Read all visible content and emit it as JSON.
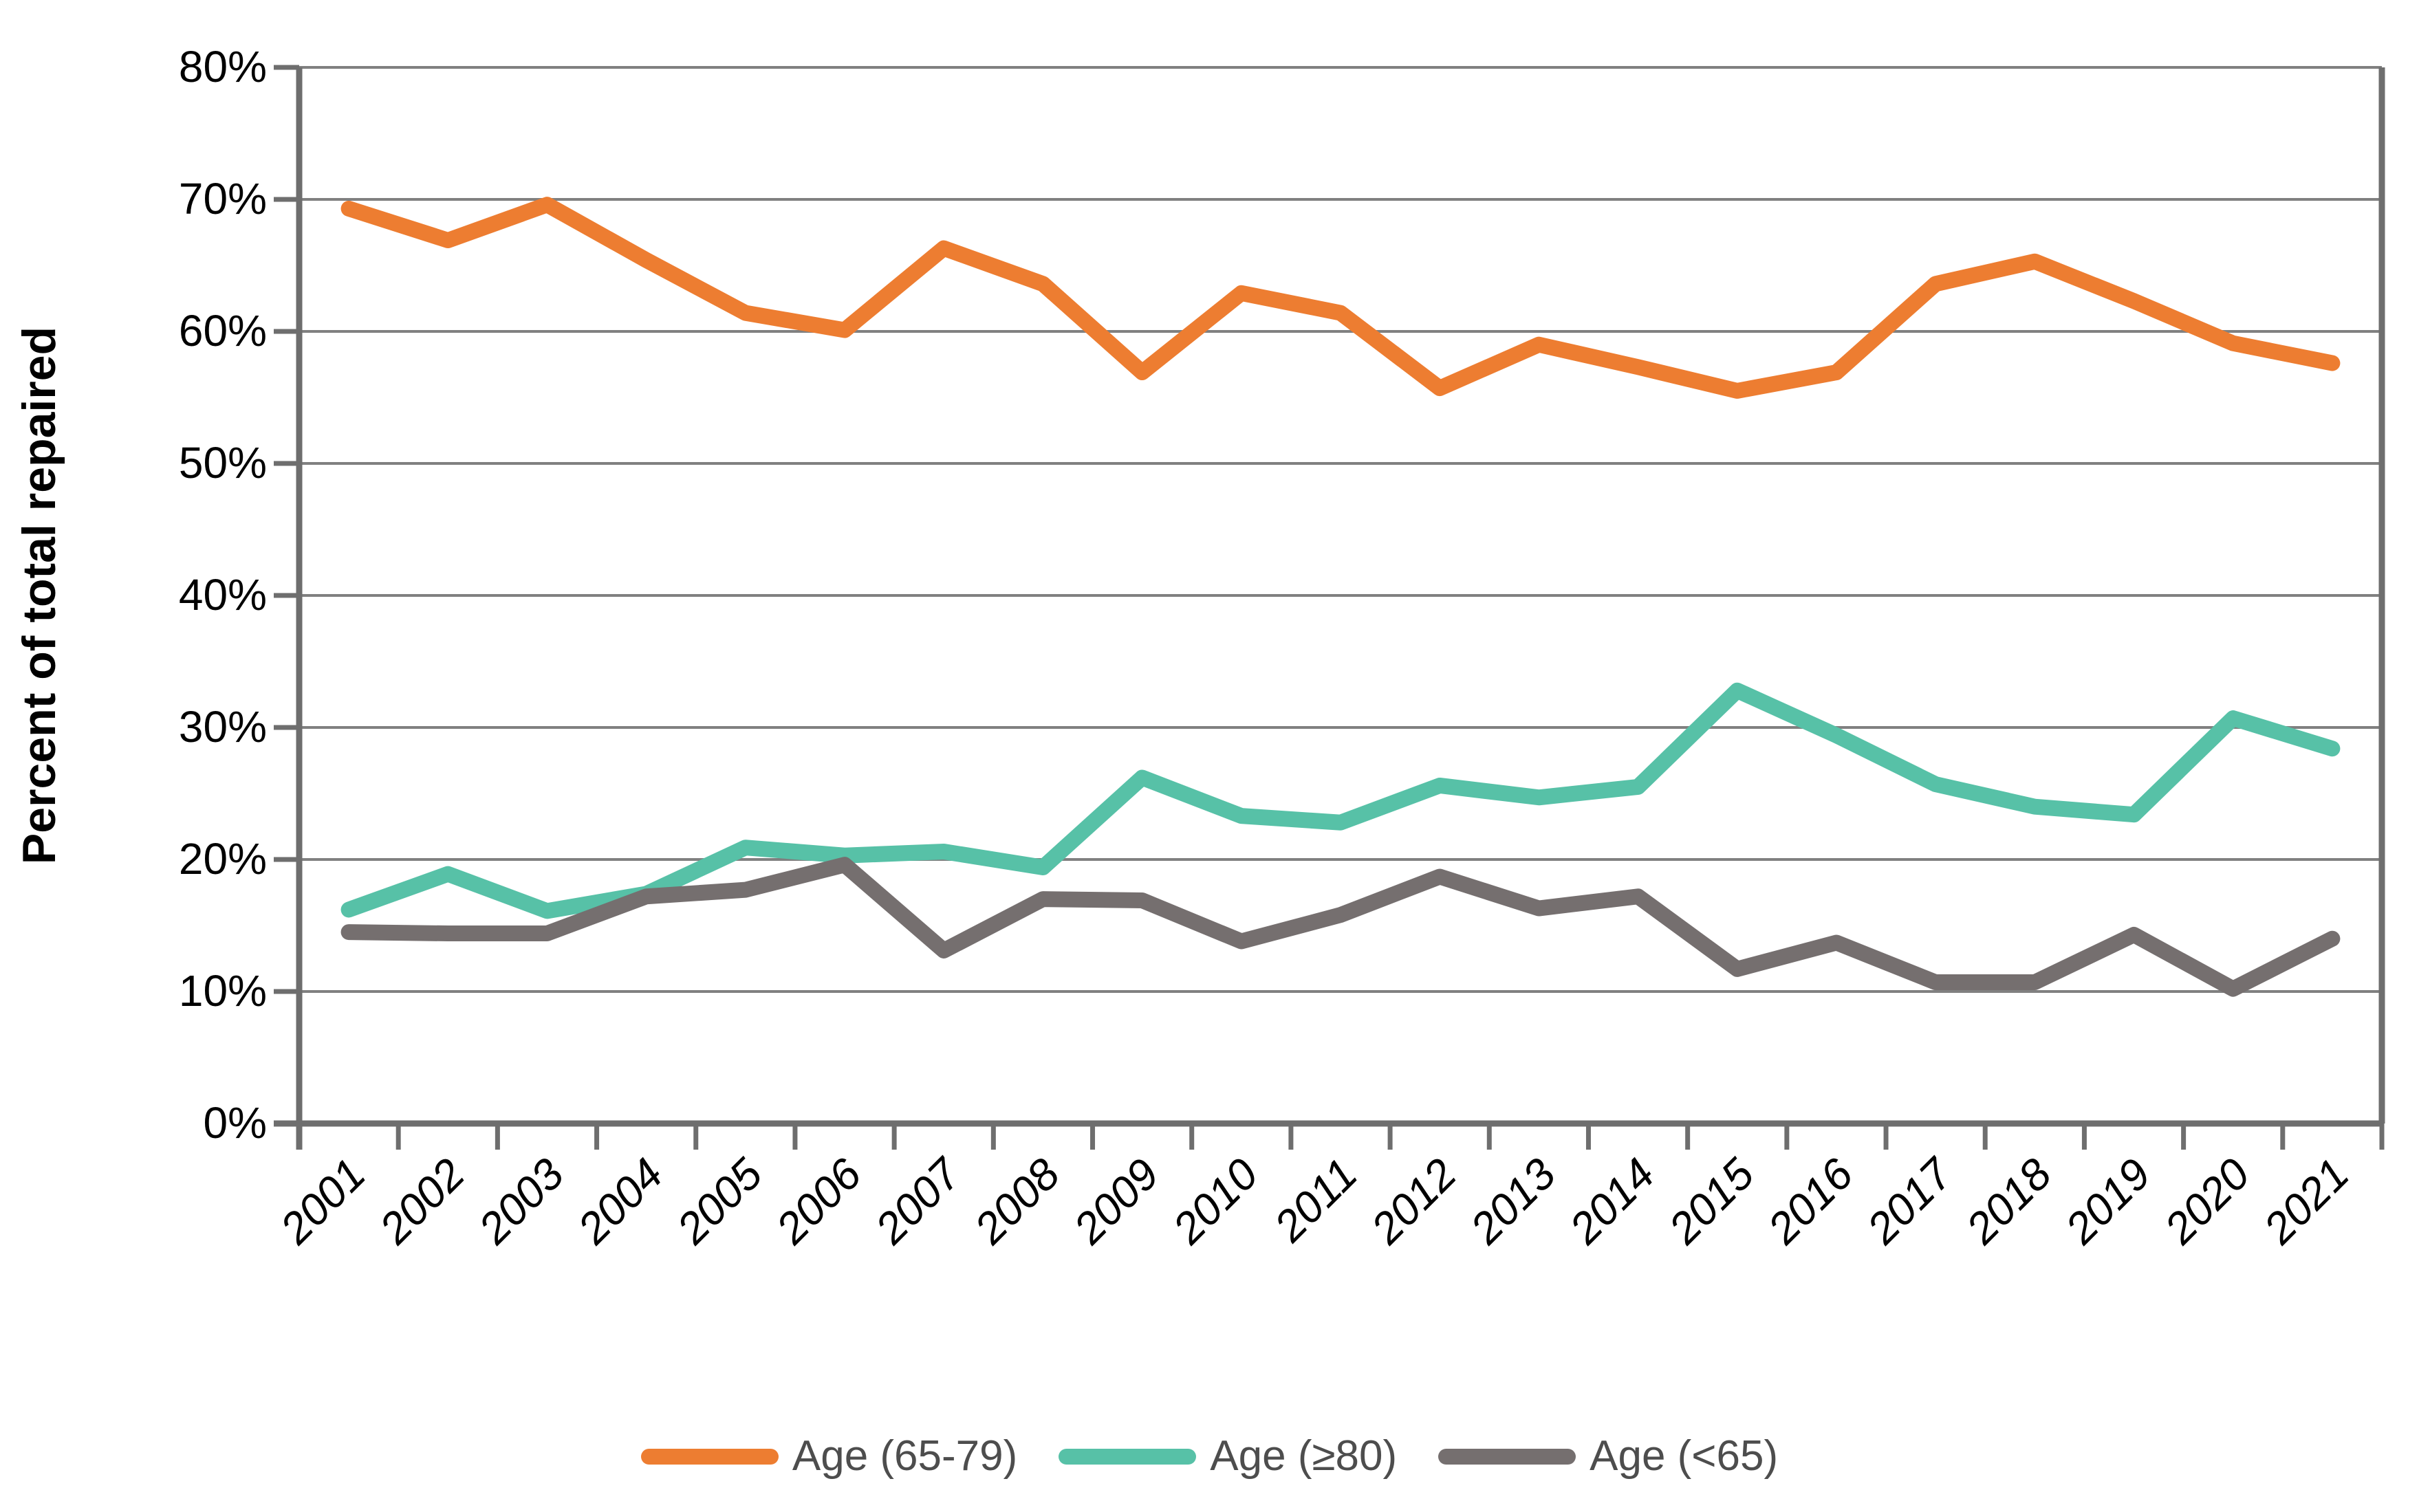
{
  "chart_data": {
    "type": "line",
    "title": "",
    "xlabel": "",
    "ylabel": "Percent of total repaired",
    "ylim": [
      0,
      80
    ],
    "ytick_step": 10,
    "ytick_labels": [
      "0%",
      "10%",
      "20%",
      "30%",
      "40%",
      "50%",
      "60%",
      "70%",
      "80%"
    ],
    "grid": "horizontal",
    "legend_position": "bottom",
    "categories": [
      "2001",
      "2002",
      "2003",
      "2004",
      "2005",
      "2006",
      "2007",
      "2008",
      "2009",
      "2010",
      "2011",
      "2012",
      "2013",
      "2014",
      "2015",
      "2016",
      "2017",
      "2018",
      "2019",
      "2020",
      "2021"
    ],
    "series": [
      {
        "name": "Age (65-79)",
        "color": "#ED7D31",
        "values": [
          69.3,
          66.9,
          69.6,
          65.4,
          61.4,
          60.1,
          66.3,
          63.6,
          56.9,
          62.9,
          61.4,
          55.7,
          59.0,
          57.3,
          55.5,
          56.9,
          63.6,
          65.3,
          62.3,
          59.1,
          57.6
        ]
      },
      {
        "name": "Age (≥80)",
        "color": "#57C1A7",
        "values": [
          16.2,
          18.9,
          16.1,
          17.4,
          20.9,
          20.3,
          20.6,
          19.4,
          26.2,
          23.3,
          22.8,
          25.6,
          24.7,
          25.5,
          32.8,
          29.4,
          25.7,
          24.0,
          23.4,
          30.7,
          28.4
        ]
      },
      {
        "name": "Age (<65)",
        "color": "#756F6F",
        "values": [
          14.5,
          14.4,
          14.4,
          17.2,
          17.7,
          19.6,
          13.1,
          17.0,
          16.9,
          13.8,
          15.8,
          18.7,
          16.3,
          17.2,
          11.7,
          13.7,
          10.7,
          10.7,
          14.3,
          10.2,
          14.0
        ]
      }
    ],
    "colors": {
      "gridline": "#808080",
      "axis": "#6E6E6E",
      "tick_label": "#000000",
      "axis_title": "#000000",
      "legend_text": "#4d4d4d",
      "background": "#ffffff"
    }
  }
}
